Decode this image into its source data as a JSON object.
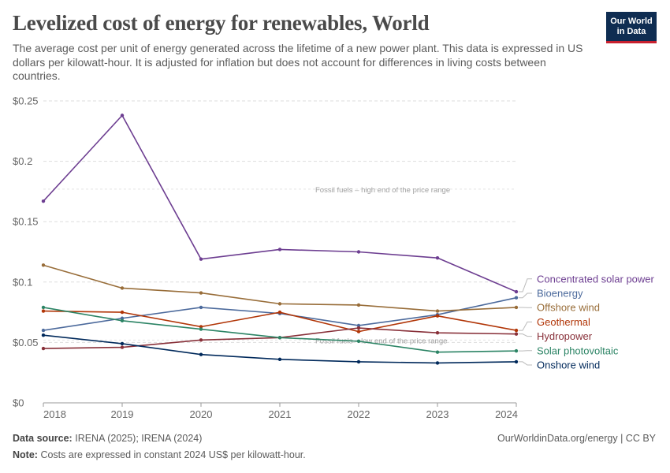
{
  "header": {
    "title": "Levelized cost of energy for renewables, World",
    "subtitle": "The average cost per unit of energy generated across the lifetime of a new power plant. This data is expressed in US dollars per kilowatt-hour. It is adjusted for inflation but does not account for differences in living costs between countries.",
    "logo_line1": "Our World",
    "logo_line2": "in Data"
  },
  "footer": {
    "source_label": "Data source:",
    "source_text": "IRENA (2025); IRENA (2024)",
    "note_label": "Note:",
    "note_text": "Costs are expressed in constant 2024 US$ per kilowatt-hour.",
    "credit": "OurWorldinData.org/energy | CC BY"
  },
  "colors": {
    "concentrated_solar": "#6d3e91",
    "bioenergy": "#4c6a9c",
    "offshore_wind": "#986d39",
    "geothermal": "#b13507",
    "hydropower": "#883039",
    "solar_pv": "#2c8465",
    "onshore_wind": "#00295b",
    "gridline": "#dddddd",
    "reference_text": "#a1a1a1"
  },
  "chart_data": {
    "type": "line",
    "x": [
      2018,
      2019,
      2020,
      2021,
      2022,
      2023,
      2024
    ],
    "ylim": [
      0,
      0.25
    ],
    "yticks": [
      0,
      0.05,
      0.1,
      0.15,
      0.2,
      0.25
    ],
    "ytick_labels": [
      "$0",
      "$0.05",
      "$0.1",
      "$0.15",
      "$0.2",
      "$0.25"
    ],
    "grid": true,
    "legend": "right, at line ends",
    "reference_lines": [
      {
        "label": "Fossil fuels – high end of the price range",
        "y": 0.177
      },
      {
        "label": "Fossil fuels – low end of the price range",
        "y": 0.052
      }
    ],
    "series": [
      {
        "name": "Concentrated solar power",
        "color_key": "concentrated_solar",
        "values": [
          0.167,
          0.238,
          0.119,
          0.127,
          0.125,
          0.12,
          0.092
        ]
      },
      {
        "name": "Bioenergy",
        "color_key": "bioenergy",
        "values": [
          0.06,
          0.07,
          0.079,
          0.074,
          0.064,
          0.073,
          0.087
        ]
      },
      {
        "name": "Offshore wind",
        "color_key": "offshore_wind",
        "values": [
          0.114,
          0.095,
          0.091,
          0.082,
          0.081,
          0.076,
          0.079
        ]
      },
      {
        "name": "Geothermal",
        "color_key": "geothermal",
        "values": [
          0.076,
          0.075,
          0.063,
          0.075,
          0.059,
          0.072,
          0.06
        ]
      },
      {
        "name": "Hydropower",
        "color_key": "hydropower",
        "values": [
          0.045,
          0.046,
          0.052,
          0.054,
          0.062,
          0.058,
          0.057
        ]
      },
      {
        "name": "Solar photovoltaic",
        "color_key": "solar_pv",
        "values": [
          0.079,
          0.068,
          0.061,
          0.054,
          0.051,
          0.042,
          0.043
        ]
      },
      {
        "name": "Onshore wind",
        "color_key": "onshore_wind",
        "values": [
          0.056,
          0.049,
          0.04,
          0.036,
          0.034,
          0.033,
          0.034
        ]
      }
    ]
  }
}
